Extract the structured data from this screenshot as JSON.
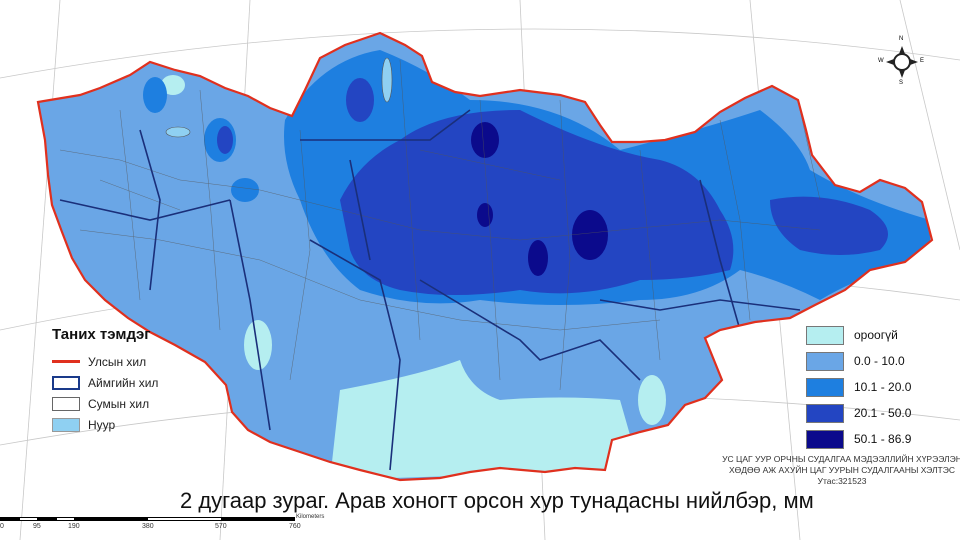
{
  "title": "2 дугаар зураг. Арав хоногт орсон хур тунадасны нийлбэр, мм",
  "legend_left": {
    "title": "Таних тэмдэг",
    "items": [
      {
        "label": "Улсын хил",
        "symbol": "red-line",
        "color": "#e0301e"
      },
      {
        "label": "Аймгийн хил",
        "symbol": "dark-blue-outline",
        "color": "#1a3a8a"
      },
      {
        "label": "Сумын хил",
        "symbol": "gray-outline",
        "color": "#666666"
      },
      {
        "label": "Нуур",
        "symbol": "lake-fill",
        "color": "#8fd0f2"
      }
    ]
  },
  "legend_right": {
    "items": [
      {
        "label": "ороогүй",
        "color": "#b5eef0"
      },
      {
        "label": "0.0 - 10.0",
        "color": "#6aa6e6"
      },
      {
        "label": "10.1 - 20.0",
        "color": "#1e7fe0"
      },
      {
        "label": "20.1 - 50.0",
        "color": "#2345c2"
      },
      {
        "label": "50.1 - 86.9",
        "color": "#0b0a8c"
      }
    ]
  },
  "credits": {
    "line1": "УС ЦАГ УУР ОРЧНЫ СУДАЛГАА МЭДЭЭЛЛИЙН ХҮРЭЭЛЭН",
    "line2": "ХӨДӨӨ АЖ АХУЙН ЦАГ УУРЫН СУДАЛГААНЫ ХЭЛТЭС",
    "line3": "Утас:321523"
  },
  "scale_bar": {
    "ticks": [
      "0",
      "95",
      "190",
      "380",
      "570",
      "760"
    ],
    "unit": "Kilometers"
  },
  "compass": {
    "n": "N",
    "s": "S",
    "e": "E",
    "w": "W"
  }
}
